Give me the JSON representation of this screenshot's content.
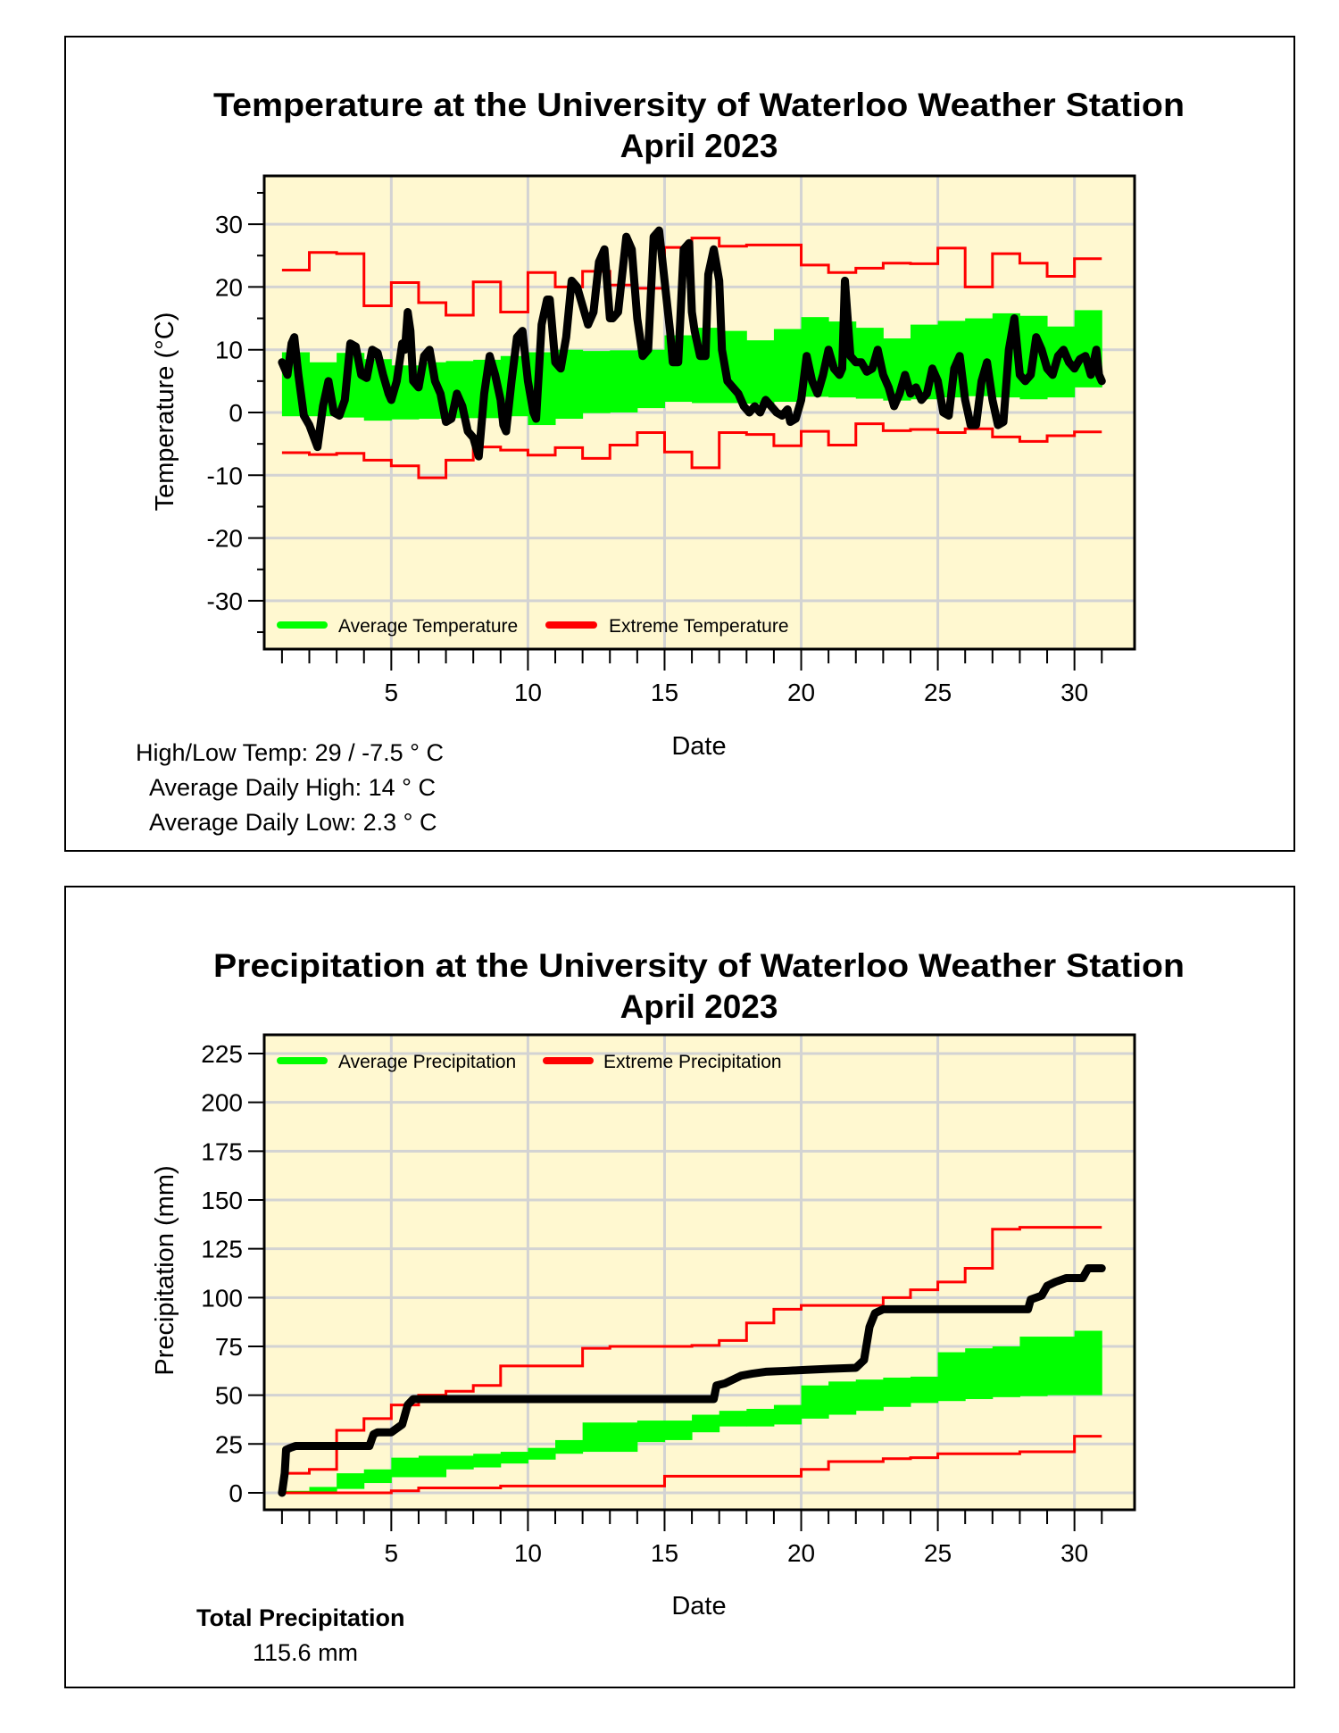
{
  "chart_data": [
    {
      "type": "line",
      "title": "Temperature at the University of Waterloo Weather Station",
      "subtitle": "April 2023",
      "xlabel": "Date",
      "ylabel": "Temperature (°C)",
      "xlim": [
        0.35,
        32.2
      ],
      "ylim": [
        -37.7,
        37.7
      ],
      "xticks": [
        5,
        10,
        15,
        20,
        25,
        30
      ],
      "yticks": [
        -30,
        -20,
        -10,
        0,
        10,
        20,
        30
      ],
      "grid": true,
      "legend_position": "bottom-left",
      "legend": [
        "Average Temperature",
        "Extreme Temperature"
      ],
      "colors": {
        "average": "#00ff00",
        "extreme": "#ff0000",
        "observed": "#000000",
        "background": "#fff8d0",
        "grid": "#d3d3d3"
      },
      "days": [
        1,
        2,
        3,
        4,
        5,
        6,
        7,
        8,
        9,
        10,
        11,
        12,
        13,
        14,
        15,
        16,
        17,
        18,
        19,
        20,
        21,
        22,
        23,
        24,
        25,
        26,
        27,
        28,
        29,
        30
      ],
      "average_high": [
        9.6,
        8,
        9.5,
        8.5,
        7.5,
        8,
        8.2,
        8.4,
        9,
        9.6,
        10,
        9.8,
        9.9,
        10,
        12.3,
        13.5,
        13,
        11.5,
        13.3,
        15.2,
        14.5,
        13.5,
        11.8,
        14,
        14.6,
        15,
        15.8,
        15.4,
        13.7,
        16.3
      ],
      "average_low": [
        -0.6,
        -0.6,
        -0.8,
        -1.3,
        -1.1,
        -1,
        -0.9,
        -0.9,
        -0.6,
        -2,
        -1,
        -0.1,
        0,
        0.7,
        1.7,
        1.5,
        1.5,
        1.4,
        1.7,
        2.5,
        2.4,
        2.2,
        1.9,
        2.1,
        2.4,
        2.6,
        2.4,
        2.1,
        2.4,
        4
      ],
      "extreme_high": [
        22.7,
        25.5,
        25.3,
        17,
        20.7,
        17.5,
        15.5,
        20.8,
        16,
        22.3,
        20,
        22.5,
        20.3,
        19.8,
        26.3,
        27.8,
        26.5,
        26.7,
        26.7,
        23.5,
        22.3,
        23,
        23.8,
        23.7,
        26.2,
        20,
        25.3,
        23.8,
        21.7,
        24.5
      ],
      "extreme_low": [
        -6.4,
        -6.7,
        -6.5,
        -7.6,
        -8.5,
        -10.4,
        -7.6,
        -5.5,
        -6,
        -6.8,
        -5.6,
        -7.3,
        -5.2,
        -3.2,
        -6.3,
        -8.8,
        -3.2,
        -3.5,
        -5.3,
        -3,
        -5.2,
        -1.8,
        -2.9,
        -2.7,
        -3.2,
        -2.6,
        -3.9,
        -4.6,
        -3.7,
        -3.1
      ],
      "observed": [
        [
          1.0,
          8
        ],
        [
          1.2,
          6
        ],
        [
          1.35,
          11
        ],
        [
          1.45,
          12
        ],
        [
          1.6,
          6
        ],
        [
          1.8,
          -0.5
        ],
        [
          2.0,
          -2
        ],
        [
          2.3,
          -5.5
        ],
        [
          2.5,
          1
        ],
        [
          2.7,
          5
        ],
        [
          2.9,
          0
        ],
        [
          3.1,
          -0.5
        ],
        [
          3.3,
          2
        ],
        [
          3.5,
          11
        ],
        [
          3.7,
          10.5
        ],
        [
          3.9,
          6
        ],
        [
          4.1,
          5.5
        ],
        [
          4.3,
          10
        ],
        [
          4.5,
          9.5
        ],
        [
          4.7,
          6
        ],
        [
          4.9,
          3
        ],
        [
          5.0,
          2
        ],
        [
          5.2,
          5
        ],
        [
          5.4,
          11
        ],
        [
          5.5,
          10
        ],
        [
          5.6,
          16
        ],
        [
          5.7,
          13
        ],
        [
          5.8,
          5
        ],
        [
          6.0,
          4
        ],
        [
          6.2,
          9
        ],
        [
          6.4,
          10
        ],
        [
          6.6,
          5
        ],
        [
          6.8,
          3
        ],
        [
          7.0,
          -1.5
        ],
        [
          7.2,
          -1
        ],
        [
          7.4,
          3
        ],
        [
          7.6,
          1
        ],
        [
          7.8,
          -3
        ],
        [
          8.0,
          -4
        ],
        [
          8.2,
          -7
        ],
        [
          8.4,
          3
        ],
        [
          8.6,
          9
        ],
        [
          8.8,
          6
        ],
        [
          9.0,
          2
        ],
        [
          9.1,
          -2
        ],
        [
          9.2,
          -3
        ],
        [
          9.4,
          5
        ],
        [
          9.6,
          12
        ],
        [
          9.8,
          13
        ],
        [
          10.0,
          5
        ],
        [
          10.2,
          0
        ],
        [
          10.3,
          -1
        ],
        [
          10.5,
          14
        ],
        [
          10.7,
          18
        ],
        [
          10.8,
          18
        ],
        [
          11.0,
          8
        ],
        [
          11.2,
          7
        ],
        [
          11.4,
          12
        ],
        [
          11.6,
          21
        ],
        [
          11.8,
          20
        ],
        [
          12.0,
          17
        ],
        [
          12.2,
          14
        ],
        [
          12.4,
          16
        ],
        [
          12.6,
          24
        ],
        [
          12.8,
          26
        ],
        [
          13.0,
          15
        ],
        [
          13.1,
          15
        ],
        [
          13.3,
          16
        ],
        [
          13.6,
          28
        ],
        [
          13.8,
          26
        ],
        [
          14.0,
          15
        ],
        [
          14.2,
          9
        ],
        [
          14.4,
          10
        ],
        [
          14.6,
          28
        ],
        [
          14.8,
          29
        ],
        [
          15.0,
          21
        ],
        [
          15.2,
          13
        ],
        [
          15.3,
          8
        ],
        [
          15.5,
          8
        ],
        [
          15.7,
          26
        ],
        [
          15.9,
          27
        ],
        [
          16.0,
          16
        ],
        [
          16.1,
          13
        ],
        [
          16.3,
          9
        ],
        [
          16.5,
          9
        ],
        [
          16.6,
          22
        ],
        [
          16.8,
          26
        ],
        [
          17.0,
          21
        ],
        [
          17.1,
          10
        ],
        [
          17.3,
          5
        ],
        [
          17.5,
          4
        ],
        [
          17.7,
          3
        ],
        [
          17.9,
          1
        ],
        [
          18.1,
          0
        ],
        [
          18.3,
          1
        ],
        [
          18.5,
          0
        ],
        [
          18.7,
          2
        ],
        [
          18.9,
          1
        ],
        [
          19.1,
          0
        ],
        [
          19.3,
          -0.5
        ],
        [
          19.5,
          0.5
        ],
        [
          19.6,
          -1.5
        ],
        [
          19.8,
          -1
        ],
        [
          20.0,
          2
        ],
        [
          20.2,
          9
        ],
        [
          20.4,
          5
        ],
        [
          20.6,
          3
        ],
        [
          20.8,
          6
        ],
        [
          21.0,
          10
        ],
        [
          21.2,
          7
        ],
        [
          21.4,
          6
        ],
        [
          21.5,
          7
        ],
        [
          21.6,
          21
        ],
        [
          21.8,
          9
        ],
        [
          22.0,
          8
        ],
        [
          22.2,
          8
        ],
        [
          22.4,
          6.5
        ],
        [
          22.6,
          7
        ],
        [
          22.8,
          10
        ],
        [
          23.0,
          6
        ],
        [
          23.2,
          4
        ],
        [
          23.4,
          1
        ],
        [
          23.6,
          3
        ],
        [
          23.8,
          6
        ],
        [
          24.0,
          3
        ],
        [
          24.2,
          4
        ],
        [
          24.4,
          2
        ],
        [
          24.6,
          3
        ],
        [
          24.8,
          7
        ],
        [
          25.0,
          5
        ],
        [
          25.2,
          0
        ],
        [
          25.4,
          -0.5
        ],
        [
          25.6,
          7
        ],
        [
          25.8,
          9
        ],
        [
          26.0,
          2
        ],
        [
          26.2,
          -2
        ],
        [
          26.4,
          -2
        ],
        [
          26.6,
          5
        ],
        [
          26.8,
          8
        ],
        [
          27.0,
          2
        ],
        [
          27.2,
          -2
        ],
        [
          27.4,
          -1.5
        ],
        [
          27.6,
          10
        ],
        [
          27.8,
          15
        ],
        [
          28.0,
          6
        ],
        [
          28.2,
          5
        ],
        [
          28.4,
          6
        ],
        [
          28.6,
          12
        ],
        [
          28.8,
          10
        ],
        [
          29.0,
          7
        ],
        [
          29.2,
          6
        ],
        [
          29.4,
          9
        ],
        [
          29.6,
          10
        ],
        [
          29.8,
          8
        ],
        [
          30.0,
          7
        ],
        [
          30.2,
          8.5
        ],
        [
          30.4,
          9
        ],
        [
          30.6,
          6
        ],
        [
          30.8,
          10
        ],
        [
          30.9,
          6
        ],
        [
          31.0,
          5
        ]
      ],
      "stats": {
        "high_low": "High/Low Temp:  29 / -7.5 ° C",
        "avg_high": "Average Daily High:  14 ° C",
        "avg_low": "Average Daily Low:  2.3 ° C"
      }
    },
    {
      "type": "line",
      "title": "Precipitation at the University of Waterloo Weather Station",
      "subtitle": "April 2023",
      "xlabel": "Date",
      "ylabel": "Precipitation (mm)",
      "xlim": [
        0.35,
        32.2
      ],
      "ylim": [
        -8.7,
        234.6
      ],
      "xticks": [
        5,
        10,
        15,
        20,
        25,
        30
      ],
      "yticks": [
        0,
        25,
        50,
        75,
        100,
        125,
        150,
        175,
        200,
        225
      ],
      "grid": true,
      "legend_position": "top-left",
      "legend": [
        "Average Precipitation",
        "Extreme Precipitation"
      ],
      "colors": {
        "average": "#00ff00",
        "extreme": "#ff0000",
        "observed": "#000000",
        "background": "#fff8d0",
        "grid": "#d3d3d3"
      },
      "days": [
        1,
        2,
        3,
        4,
        5,
        6,
        7,
        8,
        9,
        10,
        11,
        12,
        13,
        14,
        15,
        16,
        17,
        18,
        19,
        20,
        21,
        22,
        23,
        24,
        25,
        26,
        27,
        28,
        29,
        30
      ],
      "average_high": [
        1,
        3,
        10,
        12,
        18,
        19,
        19,
        20,
        21,
        23,
        27,
        36,
        36,
        37,
        37,
        40,
        42,
        43,
        45,
        55,
        57,
        58,
        59,
        59.5,
        72,
        74,
        75,
        80,
        80,
        83
      ],
      "average_low": [
        0,
        0.5,
        2,
        5,
        8,
        8,
        12,
        13,
        15,
        17,
        20,
        21,
        21,
        26,
        27,
        31,
        34,
        34,
        35,
        38,
        40,
        42,
        44,
        46,
        47,
        48,
        49,
        49.5,
        50,
        50
      ],
      "extreme_high": [
        10,
        12,
        32,
        38,
        45,
        50,
        52,
        55,
        65,
        65,
        65,
        74,
        75,
        75,
        75,
        75.5,
        78,
        87,
        94,
        96,
        96,
        96,
        100,
        104,
        108,
        115,
        135,
        136,
        136,
        136
      ],
      "extreme_low": [
        0,
        0,
        0,
        0,
        1,
        2.5,
        2.5,
        2.5,
        3.5,
        3.5,
        3.5,
        3.5,
        3.5,
        3.5,
        8.5,
        8.5,
        8.5,
        8.5,
        8.5,
        12,
        16,
        16,
        17.5,
        18,
        20,
        20,
        20,
        21,
        21,
        29
      ],
      "observed": [
        [
          1.0,
          0
        ],
        [
          1.1,
          10
        ],
        [
          1.15,
          22
        ],
        [
          1.3,
          23
        ],
        [
          1.5,
          24
        ],
        [
          2,
          24
        ],
        [
          3,
          24
        ],
        [
          4,
          24
        ],
        [
          4.2,
          24
        ],
        [
          4.35,
          30
        ],
        [
          4.5,
          31
        ],
        [
          5.0,
          31
        ],
        [
          5.2,
          33
        ],
        [
          5.4,
          35
        ],
        [
          5.6,
          45
        ],
        [
          5.8,
          48
        ],
        [
          6,
          48
        ],
        [
          16.8,
          48
        ],
        [
          16.9,
          55
        ],
        [
          17.2,
          56
        ],
        [
          17.5,
          58
        ],
        [
          17.8,
          60
        ],
        [
          18.2,
          61
        ],
        [
          18.7,
          62
        ],
        [
          19.5,
          62.5
        ],
        [
          20.2,
          63
        ],
        [
          21,
          63.5
        ],
        [
          22,
          64
        ],
        [
          22.3,
          68
        ],
        [
          22.5,
          85
        ],
        [
          22.7,
          92
        ],
        [
          23,
          94
        ],
        [
          28.3,
          94
        ],
        [
          28.4,
          99
        ],
        [
          28.8,
          101
        ],
        [
          29.0,
          106
        ],
        [
          29.3,
          108
        ],
        [
          29.7,
          110
        ],
        [
          30.3,
          110
        ],
        [
          30.5,
          115
        ],
        [
          31,
          115
        ]
      ],
      "stats": {
        "total_label": "Total Precipitation",
        "total_value": "115.6 mm"
      }
    }
  ]
}
